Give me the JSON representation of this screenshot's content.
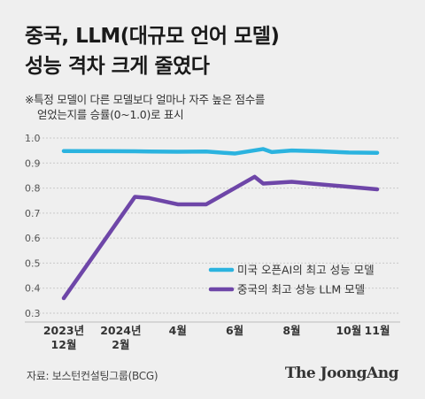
{
  "header": {
    "title_line1": "중국, LLM(대규모 언어 모델)",
    "title_line2": "성능 격차 크게 줄였다",
    "note_line1": "※특정 모델이 다른 모델보다 얼마나 자주 높은 점수를",
    "note_line2": "얻었는지를 승률(0~1.0)로 표시"
  },
  "footer": {
    "source": "자료: 보스턴컨설팅그룹(BCG)",
    "brand": "The JoongAng"
  },
  "colors": {
    "us": "#2bb3df",
    "china": "#6e46a8",
    "grid": "#c9c9c9",
    "tick_text": "#555555"
  },
  "chart_data": {
    "type": "line",
    "title": "",
    "xlabel": "",
    "ylabel": "",
    "ylim": [
      0.3,
      1.0
    ],
    "yticks": [
      "1.0",
      "0.9",
      "0.8",
      "0.7",
      "0.6",
      "0.5",
      "0.4",
      "0.3"
    ],
    "xticks": [
      {
        "t": 0,
        "label": [
          "2023년",
          "12월"
        ]
      },
      {
        "t": 2,
        "label": [
          "2024년",
          "2월"
        ]
      },
      {
        "t": 4,
        "label": [
          "4월"
        ]
      },
      {
        "t": 6,
        "label": [
          "6월"
        ]
      },
      {
        "t": 8,
        "label": [
          "8월"
        ]
      },
      {
        "t": 10,
        "label": [
          "10월"
        ]
      },
      {
        "t": 11,
        "label": [
          "11월"
        ]
      }
    ],
    "grid": true,
    "legend": "bottom-right",
    "series": [
      {
        "name": "미국 오픈AI의 최고 성능 모델",
        "color_key": "us",
        "x": [
          0,
          2.5,
          3,
          4,
          5,
          6,
          7,
          7.3,
          8,
          9,
          10,
          11
        ],
        "y": [
          0.948,
          0.947,
          0.946,
          0.945,
          0.946,
          0.938,
          0.956,
          0.944,
          0.95,
          0.947,
          0.942,
          0.941
        ]
      },
      {
        "name": "중국의 최고 성능 LLM 모델",
        "color_key": "china",
        "x": [
          0,
          2.5,
          3,
          4,
          5,
          6.7,
          7,
          8,
          9,
          10,
          11
        ],
        "y": [
          0.36,
          0.765,
          0.76,
          0.735,
          0.735,
          0.845,
          0.818,
          0.825,
          0.815,
          0.805,
          0.795
        ]
      }
    ]
  }
}
